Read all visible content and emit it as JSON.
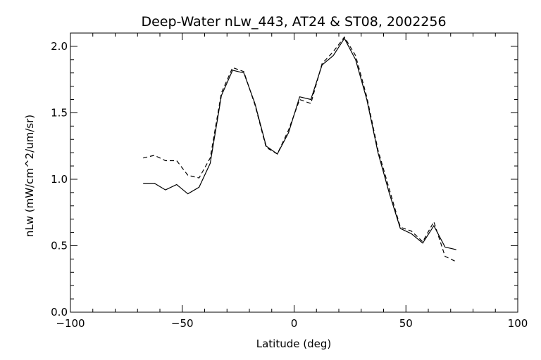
{
  "chart_data": {
    "type": "line",
    "title": "Deep-Water nLw_443, AT24 & ST08, 2002256",
    "xlabel": "Latitude (deg)",
    "ylabel": "nLw (mW/cm^2/um/sr)",
    "xlim": [
      -100,
      100
    ],
    "ylim": [
      0.0,
      2.1
    ],
    "xticks": [
      -100,
      -50,
      0,
      50,
      100
    ],
    "xtick_labels": [
      "−100",
      "−50",
      "0",
      "50",
      "100"
    ],
    "yticks": [
      0.0,
      0.5,
      1.0,
      1.5,
      2.0
    ],
    "ytick_labels": [
      "0.0",
      "0.5",
      "1.0",
      "1.5",
      "2.0"
    ],
    "grid": false,
    "series": [
      {
        "style": "solid",
        "color": "#000000",
        "x": [
          -67.5,
          -62.5,
          -57.5,
          -52.5,
          -47.5,
          -42.5,
          -37.5,
          -32.5,
          -27.5,
          -22.5,
          -17.5,
          -12.5,
          -7.5,
          -2.5,
          2.5,
          7.5,
          12.5,
          17.5,
          22.5,
          27.5,
          32.5,
          37.5,
          42.5,
          47.5,
          52.5,
          57.5,
          62.5,
          67.5,
          72.5
        ],
        "y": [
          0.97,
          0.97,
          0.92,
          0.96,
          0.89,
          0.94,
          1.12,
          1.63,
          1.82,
          1.8,
          1.57,
          1.25,
          1.19,
          1.35,
          1.62,
          1.6,
          1.86,
          1.93,
          2.06,
          1.9,
          1.6,
          1.2,
          0.9,
          0.63,
          0.59,
          0.52,
          0.65,
          0.49,
          0.47
        ]
      },
      {
        "style": "dashed",
        "color": "#000000",
        "x": [
          -67.5,
          -62.5,
          -57.5,
          -52.5,
          -47.5,
          -42.5,
          -37.5,
          -32.5,
          -27.5,
          -22.5,
          -17.5,
          -12.5,
          -7.5,
          -2.5,
          2.5,
          7.5,
          12.5,
          17.5,
          22.5,
          27.5,
          32.5,
          37.5,
          42.5,
          47.5,
          52.5,
          57.5,
          62.5,
          67.5,
          72.5
        ],
        "y": [
          1.16,
          1.18,
          1.14,
          1.14,
          1.03,
          1.01,
          1.16,
          1.65,
          1.84,
          1.81,
          1.56,
          1.24,
          1.19,
          1.37,
          1.6,
          1.57,
          1.87,
          1.96,
          2.07,
          1.93,
          1.62,
          1.22,
          0.93,
          0.64,
          0.61,
          0.53,
          0.68,
          0.42,
          0.38
        ]
      }
    ]
  }
}
